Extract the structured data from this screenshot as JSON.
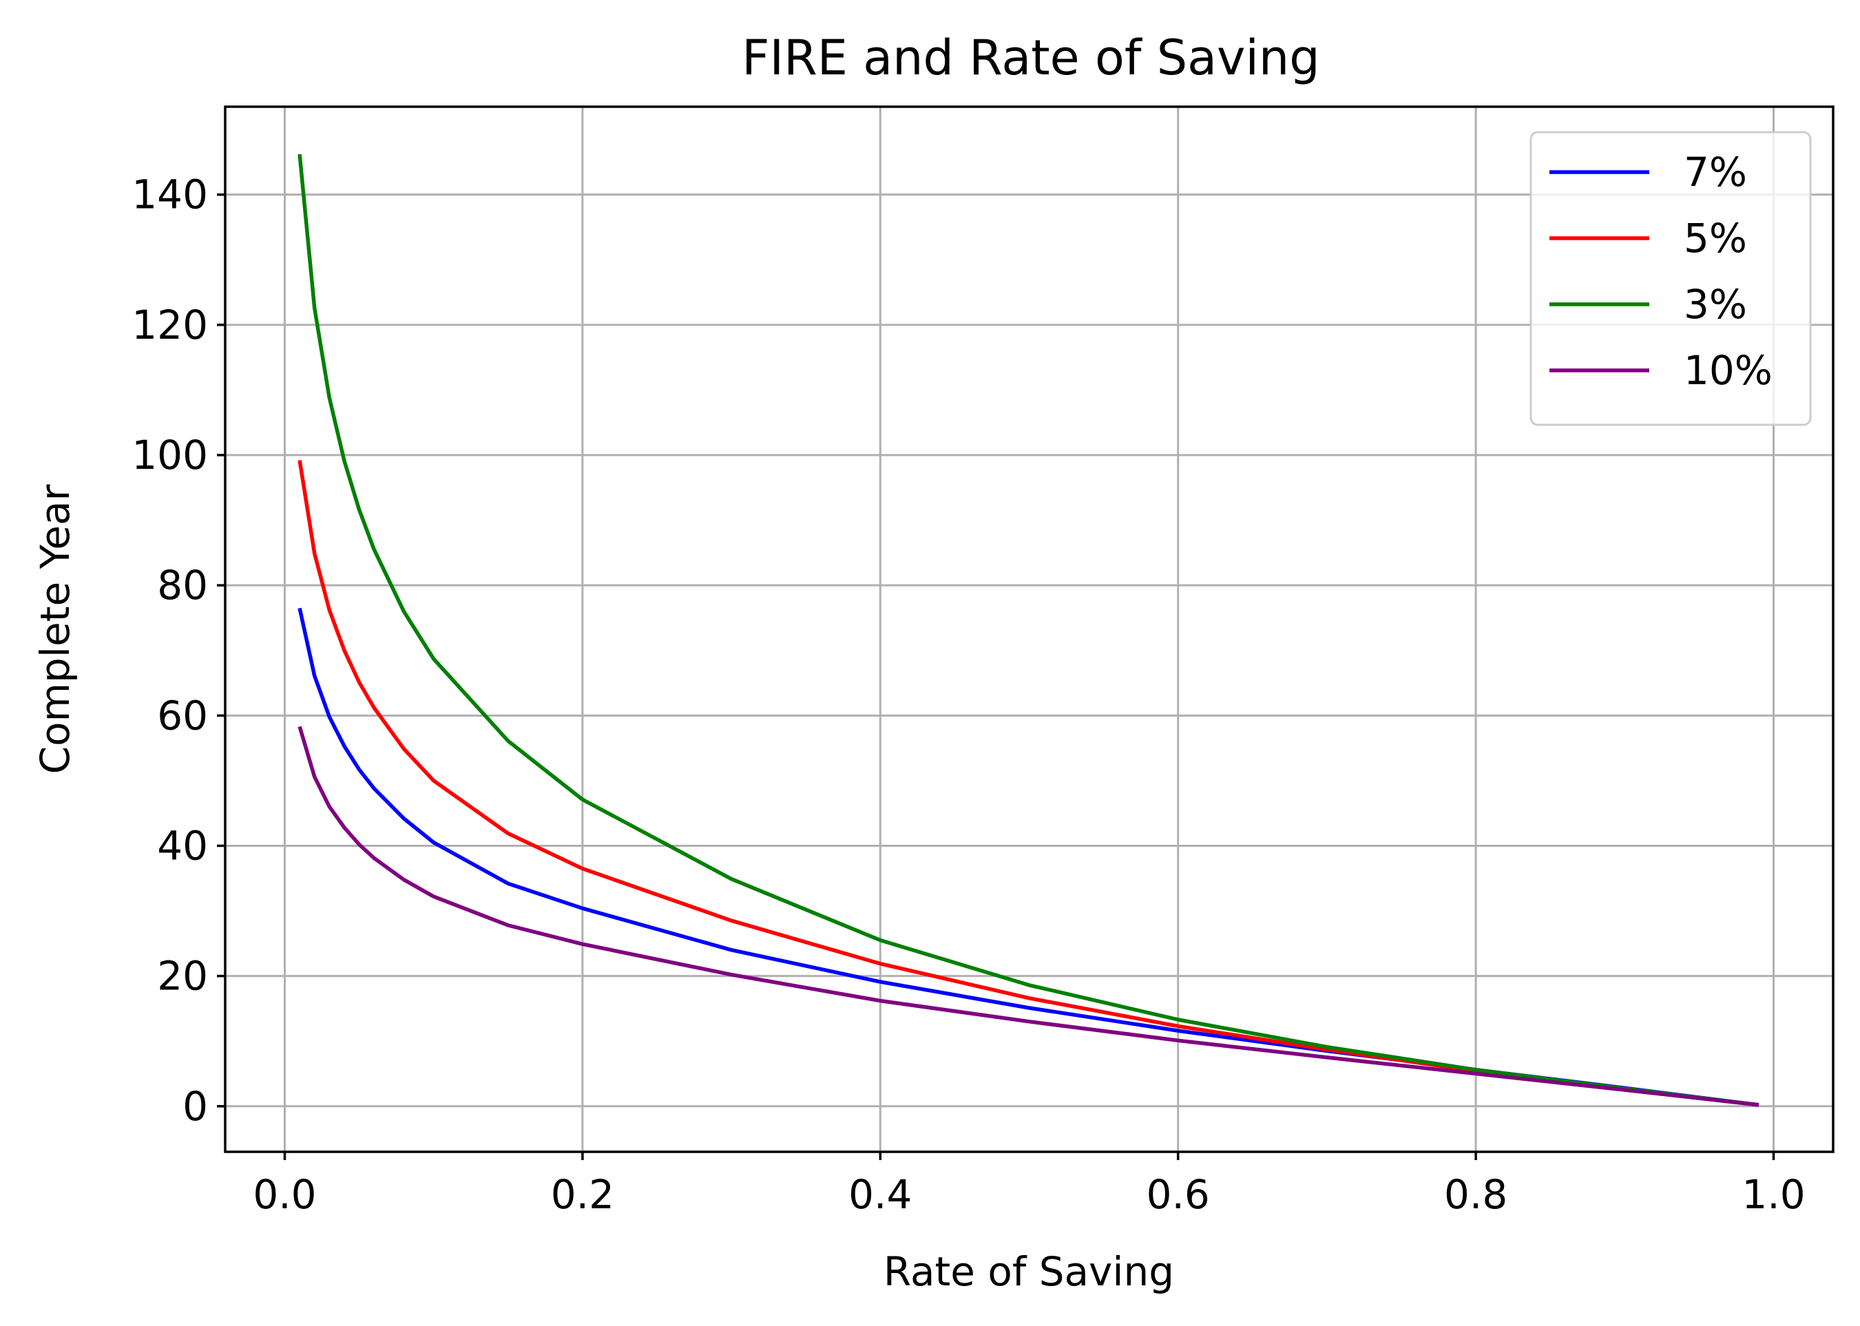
{
  "chart_data": {
    "type": "line",
    "title": "FIRE and Rate of Saving",
    "xlabel": "Rate of Saving",
    "ylabel": "Complete Year",
    "xlim": [
      -0.04,
      1.04
    ],
    "ylim": [
      -7,
      153.5
    ],
    "xticks": [
      0.0,
      0.2,
      0.4,
      0.6,
      0.8,
      1.0
    ],
    "xtick_labels": [
      "0.0",
      "0.2",
      "0.4",
      "0.6",
      "0.8",
      "1.0"
    ],
    "yticks": [
      0,
      20,
      40,
      60,
      80,
      100,
      120,
      140
    ],
    "ytick_labels": [
      "0",
      "20",
      "40",
      "60",
      "80",
      "100",
      "120",
      "140"
    ],
    "grid": true,
    "legend_position": "upper right",
    "x": [
      0.01,
      0.02,
      0.03,
      0.04,
      0.05,
      0.06,
      0.08,
      0.1,
      0.15,
      0.2,
      0.3,
      0.4,
      0.5,
      0.6,
      0.7,
      0.8,
      0.9,
      0.99
    ],
    "series": [
      {
        "name": "7%",
        "color": "#0000ff",
        "values": [
          76.5,
          66.1,
          59.8,
          55.3,
          51.7,
          48.8,
          44.2,
          40.5,
          34.2,
          30.4,
          24.0,
          19.1,
          15.1,
          11.6,
          8.5,
          5.6,
          2.8,
          0.2
        ]
      },
      {
        "name": "5%",
        "color": "#ff0000",
        "values": [
          99.2,
          84.9,
          76.2,
          70.0,
          65.1,
          61.2,
          54.9,
          50.0,
          41.9,
          36.5,
          28.5,
          21.9,
          16.6,
          12.3,
          8.7,
          5.4,
          2.6,
          0.2
        ]
      },
      {
        "name": "3%",
        "color": "#008000",
        "values": [
          146.2,
          122.6,
          108.8,
          99.1,
          91.6,
          85.5,
          76.0,
          68.7,
          56.1,
          47.1,
          34.9,
          25.5,
          18.6,
          13.3,
          9.1,
          5.6,
          2.7,
          0.2
        ]
      },
      {
        "name": "10%",
        "color": "#800080",
        "values": [
          58.3,
          50.6,
          46.0,
          42.8,
          40.2,
          38.1,
          34.8,
          32.2,
          27.8,
          24.9,
          20.2,
          16.2,
          13.0,
          10.1,
          7.5,
          5.0,
          2.5,
          0.2
        ]
      }
    ]
  }
}
